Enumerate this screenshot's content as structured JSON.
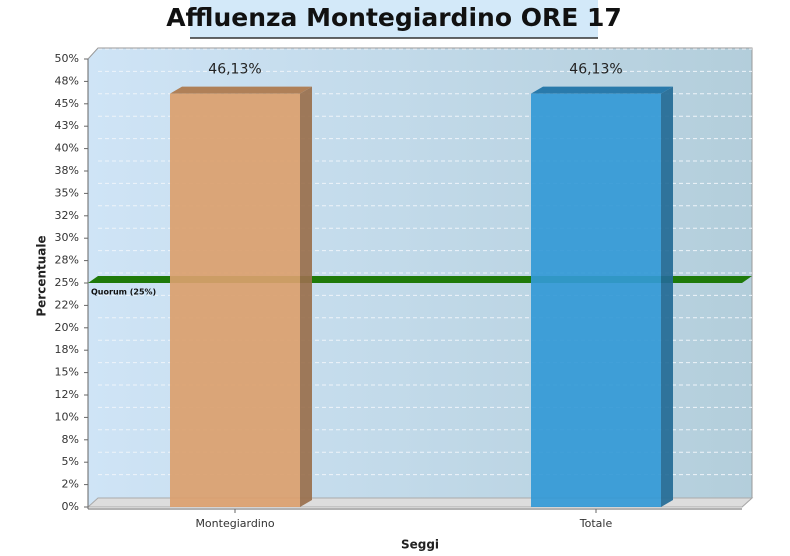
{
  "chart_data": {
    "type": "bar3d",
    "title": "Affluenza Montegiardino ORE 17",
    "categories": [
      "Montegiardino",
      "Totale"
    ],
    "values": [
      46.13,
      46.13
    ],
    "value_labels": [
      "46,13%",
      "46,13%"
    ],
    "colors": [
      "#dba06e",
      "#3399d6"
    ],
    "xlabel": "Seggi",
    "ylabel": "Percentuale",
    "ylim": [
      0,
      50
    ],
    "yticks": [
      {
        "value": 0,
        "label": "0%"
      },
      {
        "value": 2.5,
        "label": "2%"
      },
      {
        "value": 5,
        "label": "5%"
      },
      {
        "value": 7.5,
        "label": "8%"
      },
      {
        "value": 10,
        "label": "10%"
      },
      {
        "value": 12.5,
        "label": "12%"
      },
      {
        "value": 15,
        "label": "15%"
      },
      {
        "value": 17.5,
        "label": "18%"
      },
      {
        "value": 20,
        "label": "20%"
      },
      {
        "value": 22.5,
        "label": "22%"
      },
      {
        "value": 25,
        "label": "25%"
      },
      {
        "value": 27.5,
        "label": "28%"
      },
      {
        "value": 30,
        "label": "30%"
      },
      {
        "value": 32.5,
        "label": "32%"
      },
      {
        "value": 35,
        "label": "35%"
      },
      {
        "value": 37.5,
        "label": "38%"
      },
      {
        "value": 40,
        "label": "40%"
      },
      {
        "value": 42.5,
        "label": "43%"
      },
      {
        "value": 45,
        "label": "45%"
      },
      {
        "value": 47.5,
        "label": "48%"
      },
      {
        "value": 50,
        "label": "50%"
      }
    ],
    "grid": true,
    "annotations": [
      {
        "label": "Quorum (25%)",
        "value": 25,
        "color": "#1f7a0a"
      }
    ]
  }
}
